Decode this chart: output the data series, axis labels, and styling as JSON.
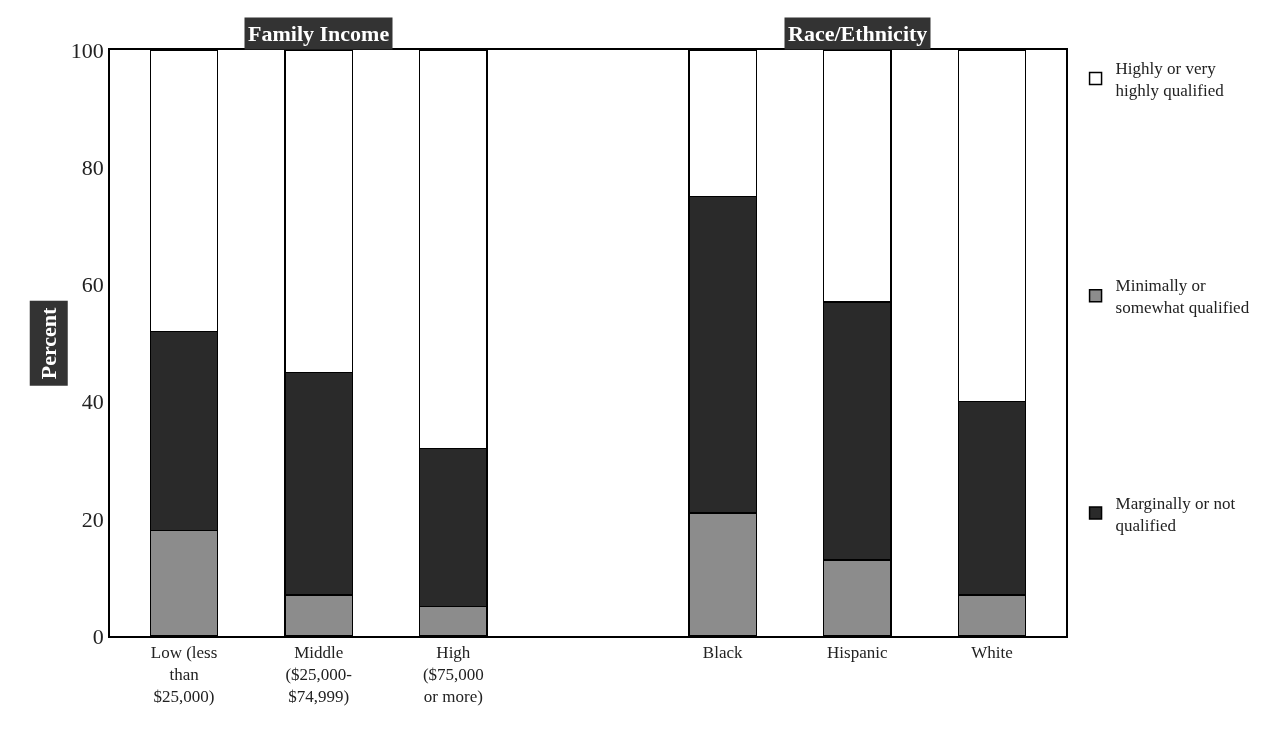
{
  "chart_data": {
    "type": "bar",
    "stacked": true,
    "ylabel": "Percent",
    "categories": [
      "Low (less\nthan\n$25,000)",
      "Middle\n($25,000-\n$74,999)",
      "High\n($75,000\nor more)",
      null,
      "Black",
      "Hispanic",
      "White"
    ],
    "series": [
      {
        "name": "Minimally or\nsomewhat qualified",
        "color": "#8c8c8c",
        "values": [
          18,
          7,
          5,
          null,
          21,
          13,
          7
        ]
      },
      {
        "name": "Marginally or not\nqualified",
        "color": "#2a2a2a",
        "values": [
          34,
          38,
          27,
          null,
          54,
          44,
          33
        ]
      },
      {
        "name": "Highly or very\nhighly qualified",
        "color": "#ffffff",
        "values": [
          48,
          55,
          68,
          null,
          25,
          43,
          60
        ]
      }
    ],
    "annotations": [
      "Family Income",
      "Race/Ethnicity"
    ],
    "ylim": [
      0,
      100
    ],
    "yticks": [
      0,
      20,
      40,
      60,
      80,
      100
    ],
    "legend": "right"
  }
}
